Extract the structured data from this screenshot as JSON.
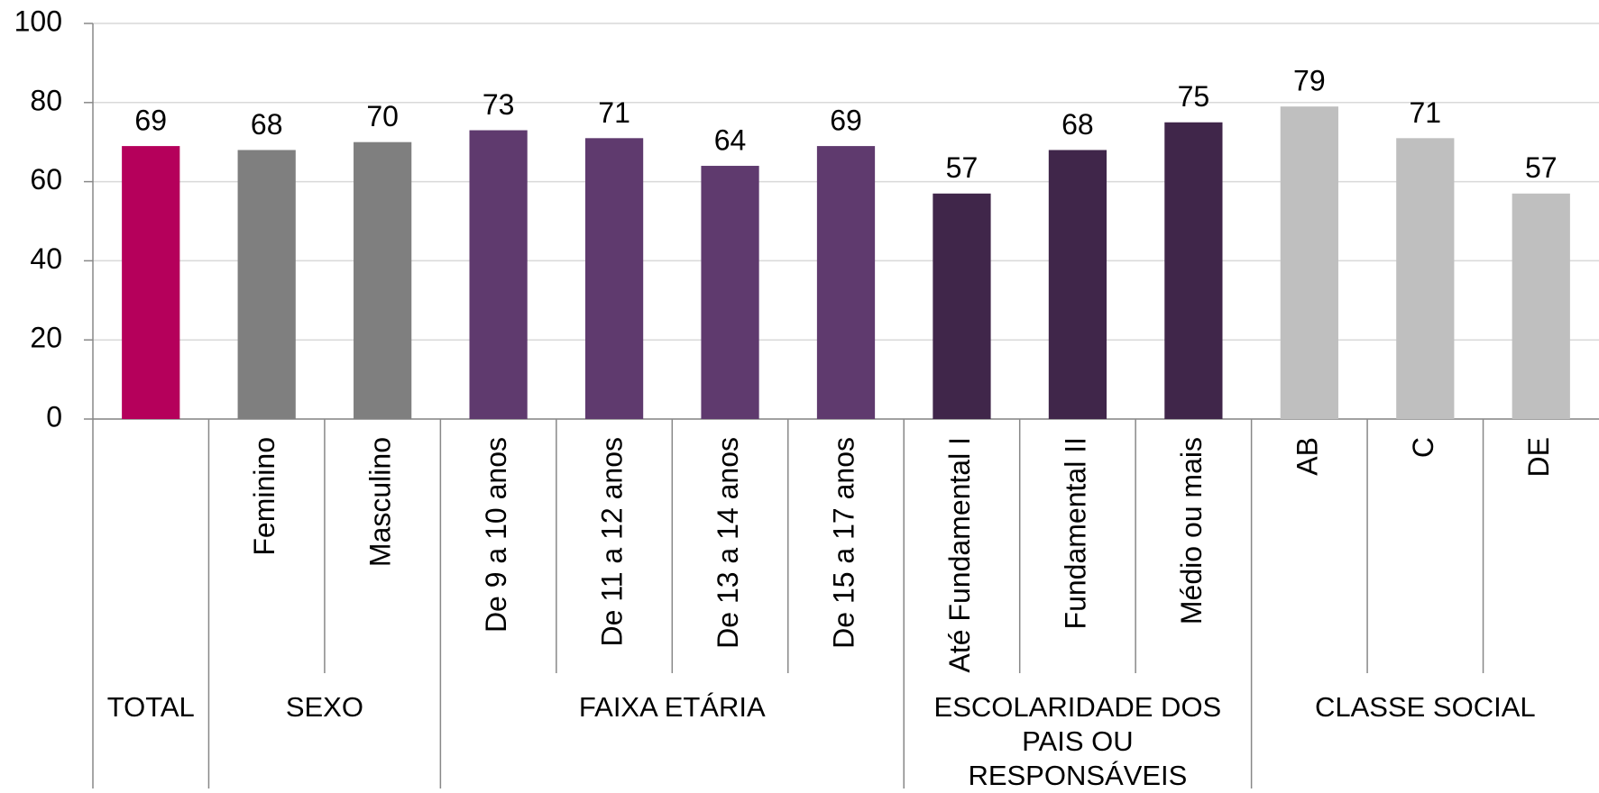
{
  "chart_data": {
    "type": "bar",
    "categories": [
      null,
      "Feminino",
      "Masculino",
      "De 9 a 10 anos",
      "De 11 a 12 anos",
      "De 13 a 14 anos",
      "De 15 a 17 anos",
      "Até Fundamental I",
      "Fundamental II",
      "Médio ou mais",
      "AB",
      "C",
      "DE"
    ],
    "values": [
      69,
      68,
      70,
      73,
      71,
      64,
      69,
      57,
      68,
      75,
      79,
      71,
      57
    ],
    "colors": [
      "#b5005b",
      "#7f7f7f",
      "#7f7f7f",
      "#5f3a6e",
      "#5f3a6e",
      "#5f3a6e",
      "#5f3a6e",
      "#40264a",
      "#40264a",
      "#40264a",
      "#bfbfbf",
      "#bfbfbf",
      "#bfbfbf"
    ],
    "groups": [
      {
        "label": "TOTAL",
        "span": 1
      },
      {
        "label": "SEXO",
        "span": 2
      },
      {
        "label": "FAIXA ETÁRIA",
        "span": 4
      },
      {
        "label": "ESCOLARIDADE DOS PAIS OU RESPONSÁVEIS",
        "span": 3
      },
      {
        "label": "CLASSE SOCIAL",
        "span": 3
      }
    ],
    "ylim": [
      0,
      100
    ],
    "yticks": [
      0,
      20,
      40,
      60,
      80,
      100
    ],
    "grid": true
  }
}
